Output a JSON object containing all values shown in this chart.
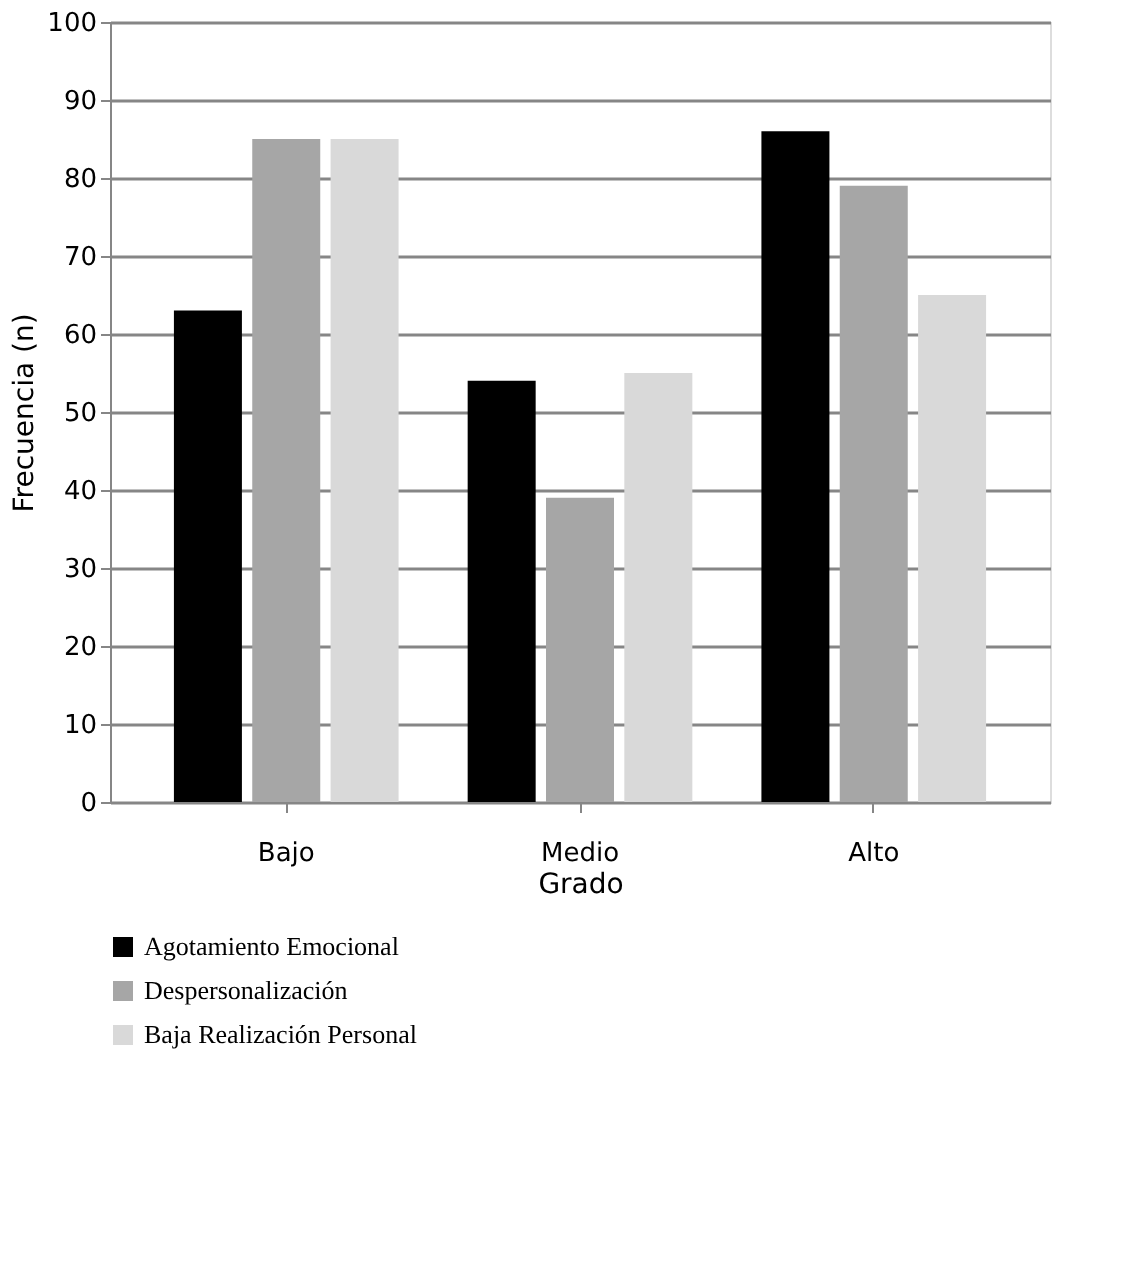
{
  "chart_data": {
    "type": "bar",
    "xlabel": "Grado",
    "ylabel": "Frecuencia (n)",
    "categories": [
      "Bajo",
      "Medio",
      "Alto"
    ],
    "series": [
      {
        "name": "Agotamiento Emocional",
        "color": "#000000",
        "values": [
          63,
          54,
          86
        ]
      },
      {
        "name": "Despersonalización",
        "color": "#a6a6a6",
        "values": [
          85,
          39,
          79
        ]
      },
      {
        "name": "Baja Realización Personal",
        "color": "#d9d9d9",
        "values": [
          85,
          55,
          65
        ]
      }
    ],
    "ylim": [
      0,
      100
    ],
    "yticks": [
      0,
      10,
      20,
      30,
      40,
      50,
      60,
      70,
      80,
      90,
      100
    ],
    "grid": "y",
    "legend": "bottom"
  }
}
